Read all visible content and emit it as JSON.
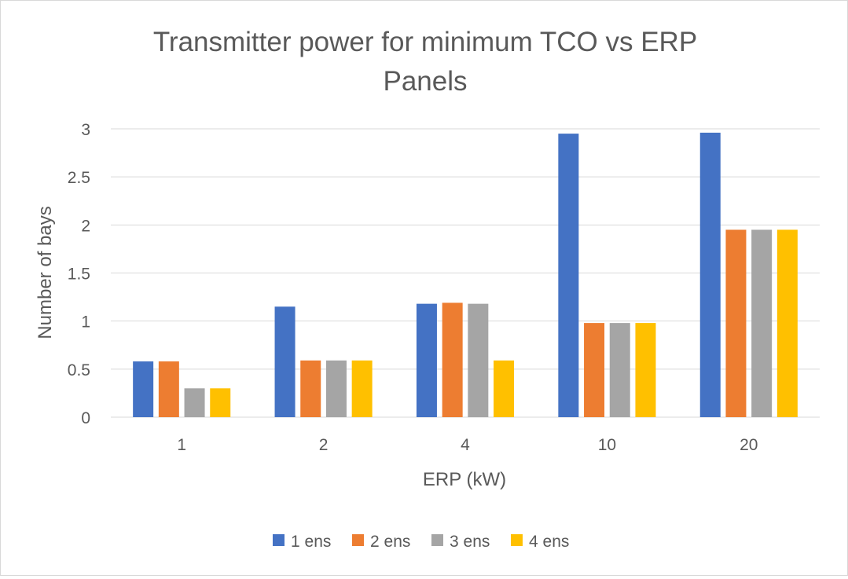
{
  "chart_data": {
    "type": "bar",
    "title": "Transmitter power for minimum TCO vs ERP",
    "subtitle": "Panels",
    "xlabel": "ERP (kW)",
    "ylabel": "Number of bays",
    "categories": [
      "1",
      "2",
      "4",
      "10",
      "20"
    ],
    "ylim": [
      0,
      3
    ],
    "yticks": [
      0,
      0.5,
      1,
      1.5,
      2,
      2.5,
      3
    ],
    "ytick_labels": [
      "0",
      "0.5",
      "1",
      "1.5",
      "2",
      "2.5",
      "3"
    ],
    "grid": true,
    "legend_position": "bottom",
    "series": [
      {
        "name": "1 ens",
        "color": "#4472C4",
        "values": [
          0.58,
          1.15,
          1.18,
          2.95,
          2.96
        ]
      },
      {
        "name": "2 ens",
        "color": "#ED7D31",
        "values": [
          0.58,
          0.59,
          1.19,
          0.98,
          1.95
        ]
      },
      {
        "name": "3 ens",
        "color": "#A5A5A5",
        "values": [
          0.3,
          0.59,
          1.18,
          0.98,
          1.95
        ]
      },
      {
        "name": "4 ens",
        "color": "#FFC000",
        "values": [
          0.3,
          0.59,
          0.59,
          0.98,
          1.95
        ]
      }
    ]
  }
}
